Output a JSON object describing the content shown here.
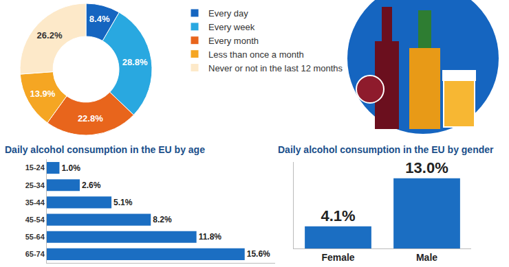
{
  "chart_data": [
    {
      "type": "pie",
      "categories": [
        "Every day",
        "Every week",
        "Every month",
        "Less than once a month",
        "Never or not in the last 12 months"
      ],
      "values": [
        8.4,
        28.8,
        22.8,
        13.9,
        26.2
      ],
      "value_labels": [
        "8.4%",
        "28.8%",
        "22.8%",
        "13.9%",
        "26.2%"
      ],
      "colors": [
        "#1565c0",
        "#29a8e0",
        "#e8651c",
        "#f5a623",
        "#fde9c9"
      ],
      "data_labels": true,
      "legend": "right"
    },
    {
      "type": "bar",
      "title": "Daily alcohol consumption in the EU by age",
      "orientation": "horizontal",
      "categories": [
        "15-24",
        "25-34",
        "35-44",
        "45-54",
        "55-64",
        "65-74"
      ],
      "values": [
        1.0,
        2.6,
        5.1,
        8.2,
        11.8,
        15.6
      ],
      "value_labels": [
        "1.0%",
        "2.6%",
        "5.1%",
        "8.2%",
        "11.8%",
        "15.6%"
      ],
      "color": "#1b6ec2",
      "xlim": [
        0,
        18
      ],
      "data_labels": true,
      "tick_labels": "y"
    },
    {
      "type": "bar",
      "title": "Daily alcohol consumption in the EU by gender",
      "categories": [
        "Female",
        "Male"
      ],
      "values": [
        4.1,
        13.0
      ],
      "value_labels": [
        "4.1%",
        "13.0%"
      ],
      "color": "#1b6ec2",
      "ylim": [
        0,
        16
      ],
      "data_labels": true,
      "tick_labels": "x"
    }
  ]
}
